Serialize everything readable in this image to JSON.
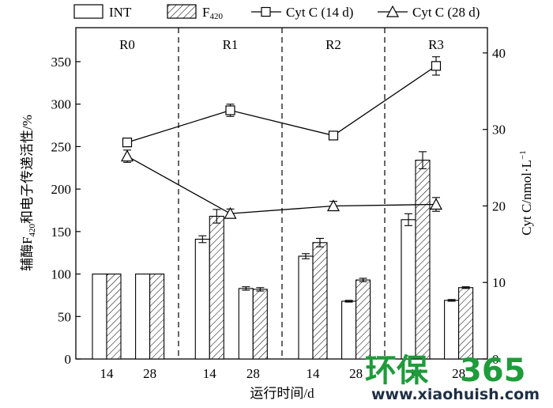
{
  "chart_data": {
    "type": "bar",
    "categories": [
      "14",
      "28",
      "14",
      "28",
      "14",
      "28",
      "14",
      "28"
    ],
    "phases": [
      "R0",
      "R1",
      "R2",
      "R3"
    ],
    "xlabel": "运行时间/d",
    "ylabel_left": "辅酶F₄₂₀和电子传递活性/%",
    "ylabel_right": "Cyt C/nmol·L⁻¹",
    "ylim_left": [
      0,
      390
    ],
    "ylim_right": [
      0,
      43.3
    ],
    "yticks_left": [
      0,
      50,
      100,
      150,
      200,
      250,
      300,
      350
    ],
    "yticks_right": [
      0,
      10,
      20,
      30,
      40
    ],
    "bar_series": [
      {
        "name": "INT",
        "values": [
          100,
          100,
          141,
          83,
          121,
          68,
          164,
          69
        ],
        "errors": [
          0,
          0,
          4,
          2,
          3,
          1,
          7,
          1
        ]
      },
      {
        "name": "F420",
        "values": [
          100,
          100,
          168,
          82,
          137,
          93,
          234,
          84
        ],
        "errors": [
          0,
          0,
          8,
          2,
          5,
          2,
          10,
          1
        ]
      }
    ],
    "line_series": [
      {
        "name": "Cyt C (14 d)",
        "marker": "square",
        "x_phase": [
          "R0",
          "R1",
          "R2",
          "R3"
        ],
        "values": [
          28.3,
          32.5,
          29.2,
          38.3
        ],
        "errors": [
          0.4,
          0.8,
          0.5,
          1.2
        ]
      },
      {
        "name": "Cyt C (28 d)",
        "marker": "triangle",
        "x_phase": [
          "R0",
          "R1",
          "R2",
          "R3"
        ],
        "values": [
          26.5,
          19.0,
          20.0,
          20.2
        ],
        "errors": [
          0.8,
          0.6,
          0.6,
          0.9
        ]
      }
    ],
    "legend_position": "top",
    "grid": false
  },
  "legend": {
    "int": "INT",
    "f420_prefix": "F",
    "f420_sub": "420",
    "cyt14": "Cyt C (14 d)",
    "cyt28": "Cyt C (28 d)"
  },
  "axes": {
    "ylabel_left_a": "辅酶F",
    "ylabel_left_sub": "420",
    "ylabel_left_b": "和电子传递活性/%",
    "ylabel_right_a": "Cyt C/nmol·L",
    "ylabel_right_sup": "−1"
  },
  "watermark": {
    "cn": "环保",
    "num": "365",
    "url": "www.xiaohuish.com"
  }
}
